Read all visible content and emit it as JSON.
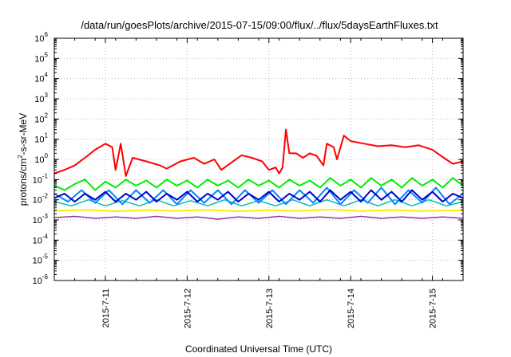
{
  "chart_data": {
    "type": "line",
    "title": "/data/run/goesPlots/archive/2015-07-15/09:00/flux/../flux/5daysEarthFluxes.txt",
    "xlabel": "Coordinated Universal Time (UTC)",
    "ylabel": "protons/cm2-s-sr-MeV",
    "ylabel_parts": {
      "pre": "protons/cm",
      "sup": "2",
      "post": "-s-sr-MeV"
    },
    "yscale": "log",
    "ylim": [
      1e-06,
      1000000.0
    ],
    "y_ticks": [
      {
        "base": "10",
        "exp": "-6"
      },
      {
        "base": "10",
        "exp": "-5"
      },
      {
        "base": "10",
        "exp": "-4"
      },
      {
        "base": "10",
        "exp": "-3"
      },
      {
        "base": "10",
        "exp": "-2"
      },
      {
        "base": "10",
        "exp": "-1"
      },
      {
        "base": "10",
        "exp": "0"
      },
      {
        "base": "10",
        "exp": "1"
      },
      {
        "base": "10",
        "exp": "2"
      },
      {
        "base": "10",
        "exp": "3"
      },
      {
        "base": "10",
        "exp": "4"
      },
      {
        "base": "10",
        "exp": "5"
      },
      {
        "base": "10",
        "exp": "6"
      }
    ],
    "xlim": [
      "2015-07-10 09:00",
      "2015-07-15 09:00"
    ],
    "x_ticks": [
      "2015-7-11",
      "2015-7-12",
      "2015-7-13",
      "2015-7-14",
      "2015-7-15"
    ],
    "grid": true,
    "series": [
      {
        "color": "#ff0000",
        "width": 2,
        "points": [
          [
            "2015-07-10 09:00",
            0.2
          ],
          [
            "2015-07-10 12:00",
            0.3
          ],
          [
            "2015-07-10 15:00",
            0.5
          ],
          [
            "2015-07-10 18:00",
            1.2
          ],
          [
            "2015-07-10 21:00",
            3
          ],
          [
            "2015-07-11 00:00",
            6
          ],
          [
            "2015-07-11 02:00",
            4
          ],
          [
            "2015-07-11 03:00",
            0.3
          ],
          [
            "2015-07-11 04:30",
            6
          ],
          [
            "2015-07-11 06:00",
            0.15
          ],
          [
            "2015-07-11 08:00",
            1.2
          ],
          [
            "2015-07-11 12:00",
            0.8
          ],
          [
            "2015-07-11 16:00",
            0.5
          ],
          [
            "2015-07-11 18:00",
            0.35
          ],
          [
            "2015-07-11 22:00",
            0.8
          ],
          [
            "2015-07-12 02:00",
            1.2
          ],
          [
            "2015-07-12 05:00",
            0.6
          ],
          [
            "2015-07-12 08:00",
            1.0
          ],
          [
            "2015-07-12 10:00",
            0.3
          ],
          [
            "2015-07-12 13:00",
            0.7
          ],
          [
            "2015-07-12 16:00",
            1.6
          ],
          [
            "2015-07-12 19:00",
            1.2
          ],
          [
            "2015-07-12 22:00",
            0.8
          ],
          [
            "2015-07-13 00:00",
            0.3
          ],
          [
            "2015-07-13 02:00",
            0.4
          ],
          [
            "2015-07-13 03:00",
            0.2
          ],
          [
            "2015-07-13 04:00",
            0.4
          ],
          [
            "2015-07-13 05:00",
            30
          ],
          [
            "2015-07-13 06:00",
            2
          ],
          [
            "2015-07-13 08:00",
            2
          ],
          [
            "2015-07-13 10:00",
            1.2
          ],
          [
            "2015-07-13 12:00",
            2
          ],
          [
            "2015-07-13 14:00",
            1.5
          ],
          [
            "2015-07-13 16:00",
            0.5
          ],
          [
            "2015-07-13 17:00",
            6
          ],
          [
            "2015-07-13 19:00",
            4
          ],
          [
            "2015-07-13 20:00",
            1.0
          ],
          [
            "2015-07-13 22:00",
            15
          ],
          [
            "2015-07-14 00:00",
            8
          ],
          [
            "2015-07-14 04:00",
            6
          ],
          [
            "2015-07-14 08:00",
            4.5
          ],
          [
            "2015-07-14 12:00",
            5
          ],
          [
            "2015-07-14 16:00",
            4
          ],
          [
            "2015-07-14 20:00",
            5
          ],
          [
            "2015-07-15 00:00",
            3
          ],
          [
            "2015-07-15 04:00",
            1.0
          ],
          [
            "2015-07-15 06:00",
            0.6
          ],
          [
            "2015-07-15 09:00",
            0.8
          ]
        ]
      },
      {
        "color": "#00ee00",
        "width": 2,
        "points": [
          [
            "2015-07-10 09:00",
            0.05
          ],
          [
            "2015-07-10 12:00",
            0.03
          ],
          [
            "2015-07-10 15:00",
            0.06
          ],
          [
            "2015-07-10 18:00",
            0.1
          ],
          [
            "2015-07-10 21:00",
            0.03
          ],
          [
            "2015-07-11 00:00",
            0.08
          ],
          [
            "2015-07-11 03:00",
            0.04
          ],
          [
            "2015-07-11 06:00",
            0.1
          ],
          [
            "2015-07-11 09:00",
            0.05
          ],
          [
            "2015-07-11 12:00",
            0.09
          ],
          [
            "2015-07-11 15:00",
            0.04
          ],
          [
            "2015-07-11 18:00",
            0.1
          ],
          [
            "2015-07-11 21:00",
            0.05
          ],
          [
            "2015-07-12 00:00",
            0.09
          ],
          [
            "2015-07-12 03:00",
            0.04
          ],
          [
            "2015-07-12 06:00",
            0.1
          ],
          [
            "2015-07-12 09:00",
            0.05
          ],
          [
            "2015-07-12 12:00",
            0.09
          ],
          [
            "2015-07-12 15:00",
            0.04
          ],
          [
            "2015-07-12 18:00",
            0.1
          ],
          [
            "2015-07-12 21:00",
            0.05
          ],
          [
            "2015-07-13 00:00",
            0.09
          ],
          [
            "2015-07-13 03:00",
            0.04
          ],
          [
            "2015-07-13 06:00",
            0.1
          ],
          [
            "2015-07-13 09:00",
            0.05
          ],
          [
            "2015-07-13 12:00",
            0.09
          ],
          [
            "2015-07-13 15:00",
            0.04
          ],
          [
            "2015-07-13 18:00",
            0.12
          ],
          [
            "2015-07-13 21:00",
            0.05
          ],
          [
            "2015-07-14 00:00",
            0.1
          ],
          [
            "2015-07-14 03:00",
            0.04
          ],
          [
            "2015-07-14 06:00",
            0.12
          ],
          [
            "2015-07-14 09:00",
            0.05
          ],
          [
            "2015-07-14 12:00",
            0.1
          ],
          [
            "2015-07-14 15:00",
            0.04
          ],
          [
            "2015-07-14 18:00",
            0.12
          ],
          [
            "2015-07-14 21:00",
            0.05
          ],
          [
            "2015-07-15 00:00",
            0.1
          ],
          [
            "2015-07-15 03:00",
            0.04
          ],
          [
            "2015-07-15 06:00",
            0.12
          ],
          [
            "2015-07-15 09:00",
            0.05
          ]
        ]
      },
      {
        "color": "#0088ff",
        "width": 2,
        "points": [
          [
            "2015-07-10 09:00",
            0.02
          ],
          [
            "2015-07-10 13:00",
            0.008
          ],
          [
            "2015-07-10 17:00",
            0.03
          ],
          [
            "2015-07-10 21:00",
            0.007
          ],
          [
            "2015-07-11 01:00",
            0.03
          ],
          [
            "2015-07-11 05:00",
            0.006
          ],
          [
            "2015-07-11 09:00",
            0.03
          ],
          [
            "2015-07-11 13:00",
            0.007
          ],
          [
            "2015-07-11 17:00",
            0.03
          ],
          [
            "2015-07-11 21:00",
            0.006
          ],
          [
            "2015-07-12 01:00",
            0.03
          ],
          [
            "2015-07-12 05:00",
            0.007
          ],
          [
            "2015-07-12 09:00",
            0.03
          ],
          [
            "2015-07-12 13:00",
            0.006
          ],
          [
            "2015-07-12 17:00",
            0.03
          ],
          [
            "2015-07-12 21:00",
            0.007
          ],
          [
            "2015-07-13 01:00",
            0.03
          ],
          [
            "2015-07-13 05:00",
            0.006
          ],
          [
            "2015-07-13 09:00",
            0.03
          ],
          [
            "2015-07-13 13:00",
            0.007
          ],
          [
            "2015-07-13 17:00",
            0.04
          ],
          [
            "2015-07-13 21:00",
            0.006
          ],
          [
            "2015-07-14 01:00",
            0.03
          ],
          [
            "2015-07-14 05:00",
            0.007
          ],
          [
            "2015-07-14 09:00",
            0.04
          ],
          [
            "2015-07-14 13:00",
            0.006
          ],
          [
            "2015-07-14 17:00",
            0.03
          ],
          [
            "2015-07-14 21:00",
            0.007
          ],
          [
            "2015-07-15 01:00",
            0.04
          ],
          [
            "2015-07-15 05:00",
            0.006
          ],
          [
            "2015-07-15 09:00",
            0.02
          ]
        ]
      },
      {
        "color": "#0000cc",
        "width": 2,
        "points": [
          [
            "2015-07-10 09:00",
            0.012
          ],
          [
            "2015-07-10 12:00",
            0.02
          ],
          [
            "2015-07-10 15:00",
            0.008
          ],
          [
            "2015-07-10 18:00",
            0.02
          ],
          [
            "2015-07-10 21:00",
            0.01
          ],
          [
            "2015-07-11 00:00",
            0.025
          ],
          [
            "2015-07-11 03:00",
            0.008
          ],
          [
            "2015-07-11 06:00",
            0.02
          ],
          [
            "2015-07-11 09:00",
            0.01
          ],
          [
            "2015-07-11 12:00",
            0.025
          ],
          [
            "2015-07-11 15:00",
            0.008
          ],
          [
            "2015-07-11 18:00",
            0.02
          ],
          [
            "2015-07-11 21:00",
            0.01
          ],
          [
            "2015-07-12 00:00",
            0.025
          ],
          [
            "2015-07-12 03:00",
            0.008
          ],
          [
            "2015-07-12 06:00",
            0.02
          ],
          [
            "2015-07-12 09:00",
            0.01
          ],
          [
            "2015-07-12 12:00",
            0.025
          ],
          [
            "2015-07-12 15:00",
            0.008
          ],
          [
            "2015-07-12 18:00",
            0.02
          ],
          [
            "2015-07-12 21:00",
            0.01
          ],
          [
            "2015-07-13 00:00",
            0.025
          ],
          [
            "2015-07-13 03:00",
            0.008
          ],
          [
            "2015-07-13 06:00",
            0.02
          ],
          [
            "2015-07-13 09:00",
            0.01
          ],
          [
            "2015-07-13 12:00",
            0.025
          ],
          [
            "2015-07-13 15:00",
            0.008
          ],
          [
            "2015-07-13 18:00",
            0.03
          ],
          [
            "2015-07-13 21:00",
            0.01
          ],
          [
            "2015-07-14 00:00",
            0.025
          ],
          [
            "2015-07-14 03:00",
            0.008
          ],
          [
            "2015-07-14 06:00",
            0.03
          ],
          [
            "2015-07-14 09:00",
            0.01
          ],
          [
            "2015-07-14 12:00",
            0.025
          ],
          [
            "2015-07-14 15:00",
            0.008
          ],
          [
            "2015-07-14 18:00",
            0.03
          ],
          [
            "2015-07-14 21:00",
            0.01
          ],
          [
            "2015-07-15 00:00",
            0.025
          ],
          [
            "2015-07-15 03:00",
            0.008
          ],
          [
            "2015-07-15 06:00",
            0.02
          ],
          [
            "2015-07-15 09:00",
            0.012
          ]
        ]
      },
      {
        "color": "#00bbbb",
        "width": 1.5,
        "points": [
          [
            "2015-07-10 09:00",
            0.008
          ],
          [
            "2015-07-10 14:00",
            0.005
          ],
          [
            "2015-07-10 19:00",
            0.01
          ],
          [
            "2015-07-11 00:00",
            0.005
          ],
          [
            "2015-07-11 05:00",
            0.009
          ],
          [
            "2015-07-11 10:00",
            0.005
          ],
          [
            "2015-07-11 15:00",
            0.01
          ],
          [
            "2015-07-11 20:00",
            0.005
          ],
          [
            "2015-07-12 01:00",
            0.009
          ],
          [
            "2015-07-12 06:00",
            0.005
          ],
          [
            "2015-07-12 11:00",
            0.01
          ],
          [
            "2015-07-12 16:00",
            0.005
          ],
          [
            "2015-07-12 21:00",
            0.009
          ],
          [
            "2015-07-13 02:00",
            0.005
          ],
          [
            "2015-07-13 07:00",
            0.01
          ],
          [
            "2015-07-13 12:00",
            0.005
          ],
          [
            "2015-07-13 17:00",
            0.01
          ],
          [
            "2015-07-13 22:00",
            0.005
          ],
          [
            "2015-07-14 03:00",
            0.01
          ],
          [
            "2015-07-14 08:00",
            0.005
          ],
          [
            "2015-07-14 13:00",
            0.01
          ],
          [
            "2015-07-14 18:00",
            0.005
          ],
          [
            "2015-07-14 23:00",
            0.01
          ],
          [
            "2015-07-15 04:00",
            0.005
          ],
          [
            "2015-07-15 09:00",
            0.008
          ]
        ]
      },
      {
        "color": "#ffee00",
        "width": 2,
        "points": [
          [
            "2015-07-10 09:00",
            0.0028
          ],
          [
            "2015-07-10 18:00",
            0.0032
          ],
          [
            "2015-07-11 03:00",
            0.0027
          ],
          [
            "2015-07-11 12:00",
            0.0031
          ],
          [
            "2015-07-11 21:00",
            0.0028
          ],
          [
            "2015-07-12 06:00",
            0.0032
          ],
          [
            "2015-07-12 15:00",
            0.0027
          ],
          [
            "2015-07-13 00:00",
            0.0031
          ],
          [
            "2015-07-13 09:00",
            0.0028
          ],
          [
            "2015-07-13 18:00",
            0.0033
          ],
          [
            "2015-07-14 03:00",
            0.0028
          ],
          [
            "2015-07-14 12:00",
            0.0031
          ],
          [
            "2015-07-14 21:00",
            0.0028
          ],
          [
            "2015-07-15 09:00",
            0.003
          ]
        ]
      },
      {
        "color": "#993399",
        "width": 1.5,
        "points": [
          [
            "2015-07-10 09:00",
            0.0013
          ],
          [
            "2015-07-10 15:00",
            0.0015
          ],
          [
            "2015-07-10 21:00",
            0.0012
          ],
          [
            "2015-07-11 03:00",
            0.0014
          ],
          [
            "2015-07-11 09:00",
            0.0012
          ],
          [
            "2015-07-11 15:00",
            0.0015
          ],
          [
            "2015-07-11 21:00",
            0.0012
          ],
          [
            "2015-07-12 03:00",
            0.0014
          ],
          [
            "2015-07-12 09:00",
            0.0011
          ],
          [
            "2015-07-12 15:00",
            0.0014
          ],
          [
            "2015-07-12 21:00",
            0.0012
          ],
          [
            "2015-07-13 03:00",
            0.0015
          ],
          [
            "2015-07-13 09:00",
            0.0012
          ],
          [
            "2015-07-13 15:00",
            0.0014
          ],
          [
            "2015-07-13 21:00",
            0.0012
          ],
          [
            "2015-07-14 03:00",
            0.0015
          ],
          [
            "2015-07-14 09:00",
            0.0012
          ],
          [
            "2015-07-14 15:00",
            0.0014
          ],
          [
            "2015-07-14 21:00",
            0.0012
          ],
          [
            "2015-07-15 03:00",
            0.0014
          ],
          [
            "2015-07-15 09:00",
            0.0012
          ]
        ]
      }
    ]
  }
}
